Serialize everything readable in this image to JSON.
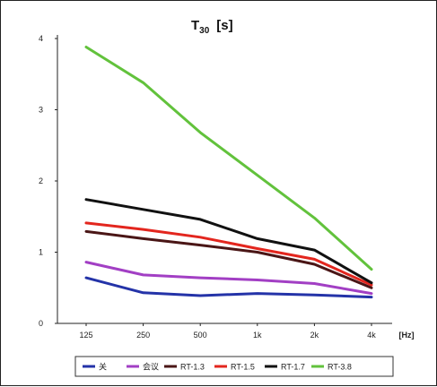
{
  "chart_data": {
    "type": "line",
    "title_main": "T",
    "title_sub": "30",
    "title_unit": "[s]",
    "x_unit": "[Hz]",
    "categories": [
      "125",
      "250",
      "500",
      "1k",
      "2k",
      "4k"
    ],
    "ylim": [
      0,
      4
    ],
    "yticks": [
      "0",
      "1",
      "2",
      "3",
      "4"
    ],
    "grid": false,
    "legend_position": "bottom",
    "series": [
      {
        "name": "关",
        "color": "#2433a8",
        "values": [
          0.64,
          0.43,
          0.39,
          0.42,
          0.4,
          0.37
        ]
      },
      {
        "name": "会议",
        "color": "#a23fc4",
        "values": [
          0.86,
          0.68,
          0.64,
          0.61,
          0.56,
          0.42
        ]
      },
      {
        "name": "RT-1.3",
        "color": "#4a1616",
        "values": [
          1.29,
          1.19,
          1.1,
          1.0,
          0.83,
          0.5
        ]
      },
      {
        "name": "RT-1.5",
        "color": "#e3261e",
        "values": [
          1.41,
          1.32,
          1.21,
          1.05,
          0.9,
          0.54
        ]
      },
      {
        "name": "RT-1.7",
        "color": "#111111",
        "values": [
          1.74,
          1.6,
          1.46,
          1.19,
          1.03,
          0.57
        ]
      },
      {
        "name": "RT-3.8",
        "color": "#62c23c",
        "values": [
          3.88,
          3.38,
          2.68,
          2.08,
          1.48,
          0.76
        ]
      }
    ]
  }
}
